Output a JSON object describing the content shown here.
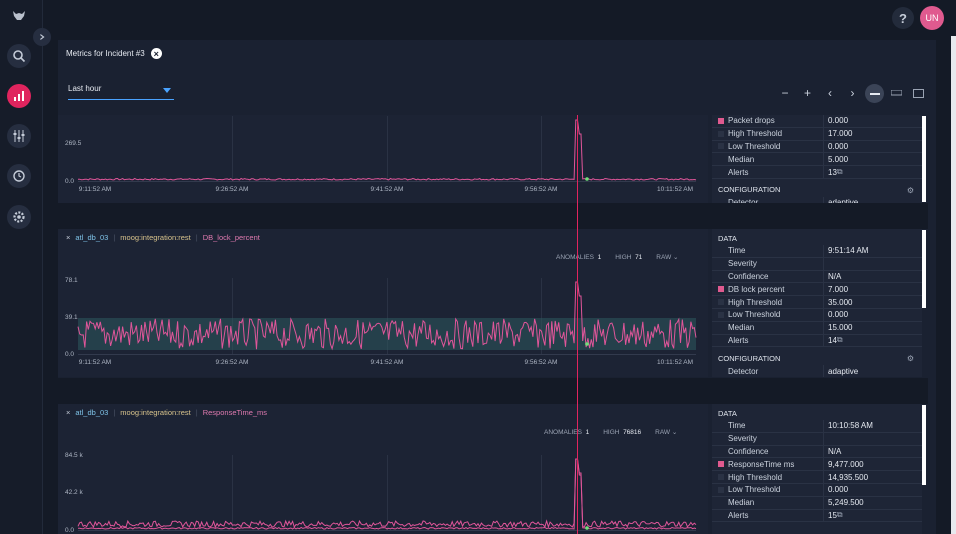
{
  "header": {
    "help_label": "?",
    "avatar_initials": "UN"
  },
  "page": {
    "title": "Metrics for Incident #3",
    "time_range": "Last hour"
  },
  "toolbar": {
    "zoom_out": "−",
    "zoom_in": "+",
    "prev": "‹",
    "next": "›"
  },
  "panels": [
    {
      "data": {
        "rows": [
          {
            "label": "Packet drops",
            "value": "0.000",
            "swatch": "pink"
          },
          {
            "label": "High Threshold",
            "value": "17.000",
            "swatch": "gray"
          },
          {
            "label": "Low Threshold",
            "value": "0.000",
            "swatch": "gray"
          },
          {
            "label": "Median",
            "value": "5.000",
            "swatch": "none"
          },
          {
            "label": "Alerts",
            "value": "13",
            "swatch": "none"
          }
        ],
        "config_title": "CONFIGURATION",
        "config_partial": "Detector",
        "config_partial_value": "adaptive"
      },
      "chart_data": {
        "type": "line",
        "yticks": [
          "269.5",
          "0.0"
        ],
        "xticks": [
          "9:11:52 AM",
          "9:26:52 AM",
          "9:41:52 AM",
          "9:56:52 AM",
          "10:11:52 AM"
        ],
        "ylim": [
          0,
          539
        ]
      }
    },
    {
      "header": {
        "host": "atl_db_03",
        "source": "moog:integration:rest",
        "metric": "DB_lock_percent"
      },
      "stats": {
        "anomalies_label": "ANOMALIES",
        "anomalies": "1",
        "high_label": "HIGH",
        "high": "71",
        "mode": "RAW"
      },
      "data": {
        "title": "DATA",
        "rows": [
          {
            "label": "Time",
            "value": "9:51:14 AM",
            "swatch": "none"
          },
          {
            "label": "Severity",
            "value": "",
            "swatch": "none"
          },
          {
            "label": "Confidence",
            "value": "N/A",
            "swatch": "none"
          },
          {
            "label": "DB lock percent",
            "value": "7.000",
            "swatch": "pink"
          },
          {
            "label": "High Threshold",
            "value": "35.000",
            "swatch": "gray"
          },
          {
            "label": "Low Threshold",
            "value": "0.000",
            "swatch": "gray"
          },
          {
            "label": "Median",
            "value": "15.000",
            "swatch": "none"
          },
          {
            "label": "Alerts",
            "value": "14",
            "swatch": "none"
          }
        ],
        "config_title": "CONFIGURATION",
        "config_partial": "Detector",
        "config_partial_value": "adaptive"
      },
      "chart_data": {
        "type": "line",
        "yticks": [
          "78.1",
          "39.1",
          "0.0"
        ],
        "xticks": [
          "9:11:52 AM",
          "9:26:52 AM",
          "9:41:52 AM",
          "9:56:52 AM",
          "10:11:52 AM"
        ],
        "ylim": [
          0,
          78.1
        ]
      }
    },
    {
      "header": {
        "host": "atl_db_03",
        "source": "moog:integration:rest",
        "metric": "ResponseTime_ms"
      },
      "stats": {
        "anomalies_label": "ANOMALIES",
        "anomalies": "1",
        "high_label": "HIGH",
        "high": "76816",
        "mode": "RAW"
      },
      "data": {
        "title": "DATA",
        "rows": [
          {
            "label": "Time",
            "value": "10:10:58 AM",
            "swatch": "none"
          },
          {
            "label": "Severity",
            "value": "",
            "swatch": "none"
          },
          {
            "label": "Confidence",
            "value": "N/A",
            "swatch": "none"
          },
          {
            "label": "ResponseTime ms",
            "value": "9,477.000",
            "swatch": "pink"
          },
          {
            "label": "High Threshold",
            "value": "14,935.500",
            "swatch": "gray"
          },
          {
            "label": "Low Threshold",
            "value": "0.000",
            "swatch": "gray"
          },
          {
            "label": "Median",
            "value": "5,249.500",
            "swatch": "none"
          },
          {
            "label": "Alerts",
            "value": "15",
            "swatch": "none"
          }
        ]
      },
      "chart_data": {
        "type": "line",
        "yticks": [
          "84.5 k",
          "42.2 k",
          "0.0"
        ],
        "ylim": [
          0,
          84500
        ]
      }
    }
  ]
}
